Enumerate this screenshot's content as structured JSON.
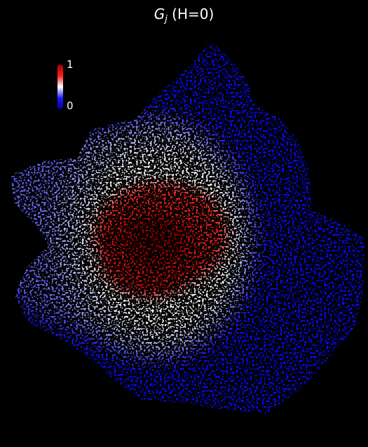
{
  "figure": {
    "title_symbol": "G",
    "title_subscript": "j",
    "title_suffix": " (H=0)"
  },
  "colorbar": {
    "max_label": "1",
    "min_label": "0",
    "colors": [
      "#000096",
      "#1a1aff",
      "#ffffff",
      "#ff1a1a",
      "#9e0000"
    ]
  }
}
